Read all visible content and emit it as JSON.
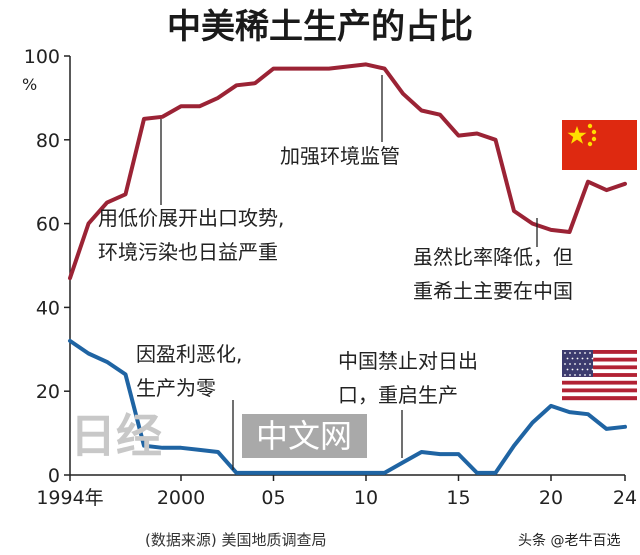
{
  "chart_data": {
    "type": "line",
    "title": "中美稀土生产的占比",
    "ylabel_unit": "%",
    "ylim": [
      0,
      100
    ],
    "yticks": [
      "100",
      "80",
      "60",
      "40",
      "20",
      "0"
    ],
    "xlim": [
      1994,
      2024
    ],
    "xticks": [
      {
        "x": 1994,
        "label": "1994年"
      },
      {
        "x": 2000,
        "label": "2000"
      },
      {
        "x": 2005,
        "label": "05"
      },
      {
        "x": 2010,
        "label": "10"
      },
      {
        "x": 2015,
        "label": "15"
      },
      {
        "x": 2020,
        "label": "20"
      },
      {
        "x": 2024,
        "label": "24"
      }
    ],
    "series": [
      {
        "key": "china",
        "color": "#9b2335",
        "points": [
          [
            1994,
            47
          ],
          [
            1995,
            60
          ],
          [
            1996,
            65
          ],
          [
            1997,
            67
          ],
          [
            1998,
            85
          ],
          [
            1999,
            85.5
          ],
          [
            2000,
            88
          ],
          [
            2001,
            88
          ],
          [
            2002,
            90
          ],
          [
            2003,
            93
          ],
          [
            2004,
            93.5
          ],
          [
            2005,
            97
          ],
          [
            2006,
            97
          ],
          [
            2007,
            97
          ],
          [
            2008,
            97
          ],
          [
            2009,
            97.5
          ],
          [
            2010,
            98
          ],
          [
            2011,
            97
          ],
          [
            2012,
            91
          ],
          [
            2013,
            87
          ],
          [
            2014,
            86
          ],
          [
            2015,
            81
          ],
          [
            2016,
            81.5
          ],
          [
            2017,
            80
          ],
          [
            2018,
            63
          ],
          [
            2019,
            60
          ],
          [
            2020,
            58.5
          ],
          [
            2021,
            58
          ],
          [
            2022,
            70
          ],
          [
            2023,
            68
          ],
          [
            2024,
            69.5
          ]
        ]
      },
      {
        "key": "usa",
        "color": "#1f64a3",
        "points": [
          [
            1994,
            32
          ],
          [
            1995,
            29
          ],
          [
            1996,
            27
          ],
          [
            1997,
            24
          ],
          [
            1998,
            7
          ],
          [
            1999,
            6.5
          ],
          [
            2000,
            6.5
          ],
          [
            2001,
            6
          ],
          [
            2002,
            5.5
          ],
          [
            2003,
            0.5
          ],
          [
            2004,
            0.5
          ],
          [
            2005,
            0.5
          ],
          [
            2006,
            0.5
          ],
          [
            2007,
            0.5
          ],
          [
            2008,
            0.5
          ],
          [
            2009,
            0.5
          ],
          [
            2010,
            0.5
          ],
          [
            2011,
            0.5
          ],
          [
            2012,
            3
          ],
          [
            2013,
            5.5
          ],
          [
            2014,
            5
          ],
          [
            2015,
            5
          ],
          [
            2016,
            0.5
          ],
          [
            2017,
            0.5
          ],
          [
            2018,
            7
          ],
          [
            2019,
            12.5
          ],
          [
            2020,
            16.5
          ],
          [
            2021,
            15
          ],
          [
            2022,
            14.5
          ],
          [
            2023,
            11
          ],
          [
            2024,
            11.5
          ]
        ]
      }
    ],
    "annotations": [
      {
        "key": "cn1",
        "lines": [
          "用低价展开出口攻势,",
          "环境污染也日益严重"
        ]
      },
      {
        "key": "cn2",
        "lines": [
          "加强环境监管"
        ]
      },
      {
        "key": "cn3",
        "lines": [
          "虽然比率降低，但",
          "重希土主要在中国"
        ]
      },
      {
        "key": "us1",
        "lines": [
          "因盈利恶化,",
          "生产为零"
        ]
      },
      {
        "key": "us2",
        "lines": [
          "中国禁止对日出",
          "口，重启生产"
        ]
      }
    ],
    "source": "(数据来源) 美国地质调查局",
    "watermark": {
      "logo": "日经",
      "text": "中文网"
    },
    "credit": "头条 @老牛百选",
    "flags": {
      "china": "china-flag-icon",
      "usa": "usa-flag-icon"
    },
    "colors": {
      "china_red": "#de2910",
      "china_yellow": "#ffde00",
      "us_red": "#b22234",
      "us_blue": "#3c3b6e"
    }
  }
}
